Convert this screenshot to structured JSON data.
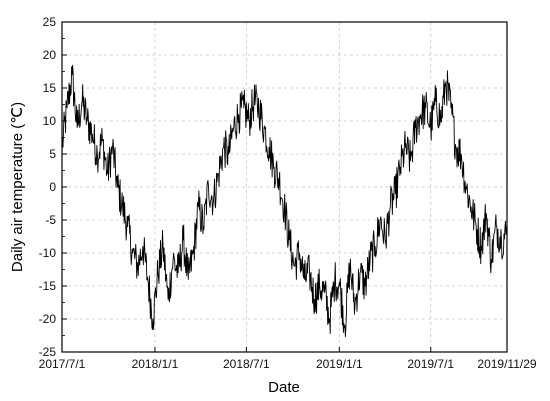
{
  "chart_data": {
    "type": "line",
    "title": "",
    "xlabel": "Date",
    "ylabel": "Daily air temperature (℃)",
    "xlim": [
      "2017-07-01",
      "2019-11-29"
    ],
    "ylim": [
      -25,
      25
    ],
    "x_ticks": [
      "2017/7/1",
      "2018/1/1",
      "2018/7/1",
      "2019/1/1",
      "2019/7/1",
      "2019/11/29"
    ],
    "y_ticks": [
      "25",
      "20",
      "15",
      "10",
      "5",
      "0",
      "-5",
      "-10",
      "-15",
      "-20",
      "-25"
    ],
    "grid": true,
    "legend": "none",
    "line_color": "#000000",
    "series": [
      {
        "x": [
          "2017-07-01",
          "2017-07-11",
          "2017-07-21",
          "2017-07-31",
          "2017-08-10",
          "2017-08-20",
          "2017-08-30",
          "2017-09-09",
          "2017-09-19",
          "2017-09-29",
          "2017-10-09",
          "2017-10-19",
          "2017-10-29",
          "2017-11-08",
          "2017-11-18",
          "2017-11-28",
          "2017-12-08",
          "2017-12-18",
          "2017-12-28",
          "2018-01-07",
          "2018-01-17",
          "2018-01-27",
          "2018-02-06",
          "2018-02-16",
          "2018-02-26",
          "2018-03-08",
          "2018-03-18",
          "2018-03-28",
          "2018-04-07",
          "2018-04-17",
          "2018-04-27",
          "2018-05-07",
          "2018-05-17",
          "2018-05-27",
          "2018-06-06",
          "2018-06-16",
          "2018-06-26",
          "2018-07-06",
          "2018-07-16",
          "2018-07-26",
          "2018-08-05",
          "2018-08-15",
          "2018-08-25",
          "2018-09-04",
          "2018-09-14",
          "2018-09-24",
          "2018-10-04",
          "2018-10-14",
          "2018-10-24",
          "2018-11-03",
          "2018-11-13",
          "2018-11-23",
          "2018-12-03",
          "2018-12-13",
          "2018-12-23",
          "2019-01-02",
          "2019-01-12",
          "2019-01-22",
          "2019-02-01",
          "2019-02-11",
          "2019-02-21",
          "2019-03-03",
          "2019-03-13",
          "2019-03-23",
          "2019-04-02",
          "2019-04-12",
          "2019-04-22",
          "2019-05-02",
          "2019-05-12",
          "2019-05-22",
          "2019-06-01",
          "2019-06-11",
          "2019-06-21",
          "2019-07-01",
          "2019-07-11",
          "2019-07-21",
          "2019-07-31",
          "2019-08-10",
          "2019-08-20",
          "2019-08-30",
          "2019-09-09",
          "2019-09-19",
          "2019-09-29",
          "2019-10-09",
          "2019-10-19",
          "2019-10-29",
          "2019-11-08",
          "2019-11-18",
          "2019-11-29"
        ],
        "y": [
          6,
          12,
          17,
          9,
          13,
          10,
          8,
          5,
          7,
          2,
          6,
          0,
          -3,
          -6,
          -10,
          -12,
          -9,
          -14,
          -20,
          -13,
          -9,
          -17,
          -11,
          -13,
          -8,
          -14,
          -10,
          -3,
          -6,
          0,
          -2,
          2,
          6,
          5,
          9,
          11,
          12,
          10,
          13,
          12,
          9,
          6,
          3,
          1,
          -3,
          -8,
          -12,
          -10,
          -14,
          -13,
          -17,
          -15,
          -16,
          -20,
          -14,
          -15,
          -21,
          -12,
          -18,
          -13,
          -15,
          -11,
          -9,
          -5,
          -8,
          -3,
          -1,
          3,
          6,
          4,
          9,
          11,
          12,
          9,
          13,
          10,
          16,
          12,
          6,
          5,
          0,
          -3,
          -6,
          -9,
          -4,
          -11,
          -6,
          -8,
          -7
        ]
      }
    ]
  }
}
